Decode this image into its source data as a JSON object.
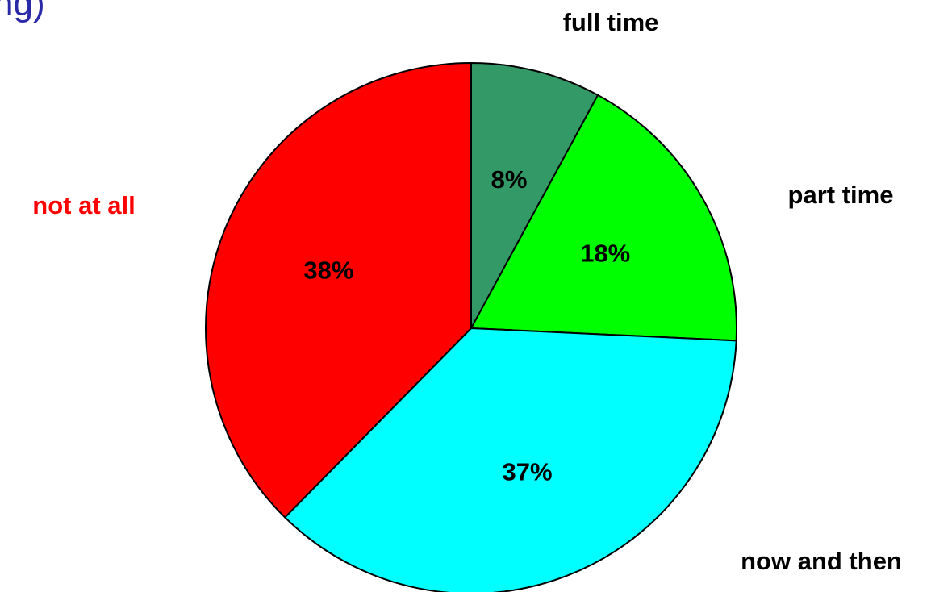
{
  "chart_data": {
    "type": "pie",
    "title": "",
    "partial_title": "ng)",
    "slices": [
      {
        "label": "full time",
        "value": 8,
        "percent_label": "8%",
        "color": "#339966",
        "label_color": "#000000"
      },
      {
        "label": "part time",
        "value": 18,
        "percent_label": "18%",
        "color": "#00ff00",
        "label_color": "#000000"
      },
      {
        "label": "now and then",
        "value": 37,
        "percent_label": "37%",
        "color": "#00ffff",
        "label_color": "#000000"
      },
      {
        "label": "not at all",
        "value": 38,
        "percent_label": "38%",
        "color": "#ff0000",
        "label_color": "#ff0000"
      }
    ],
    "start_angle": "12 o'clock",
    "direction": "clockwise",
    "legend": "none"
  }
}
